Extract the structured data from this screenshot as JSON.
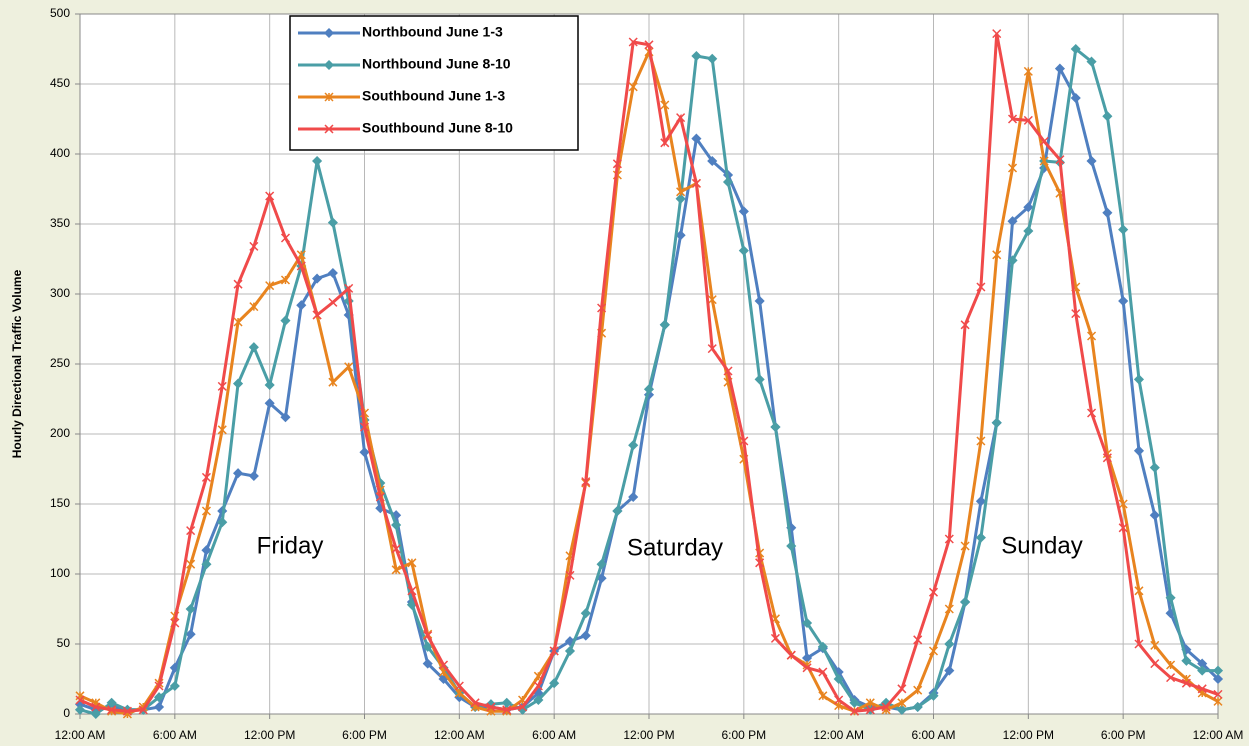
{
  "chart_data": {
    "type": "line",
    "ylabel": "Hourly Directional Traffic Volume",
    "x": [
      0,
      1,
      2,
      3,
      4,
      5,
      6,
      7,
      8,
      9,
      10,
      11,
      12,
      13,
      14,
      15,
      16,
      17,
      18,
      19,
      20,
      21,
      22,
      23,
      24,
      25,
      26,
      27,
      28,
      29,
      30,
      31,
      32,
      33,
      34,
      35,
      36,
      37,
      38,
      39,
      40,
      41,
      42,
      43,
      44,
      45,
      46,
      47,
      48,
      49,
      50,
      51,
      52,
      53,
      54,
      55,
      56,
      57,
      58,
      59,
      60,
      61,
      62,
      63,
      64,
      65,
      66,
      67,
      68,
      69,
      70,
      71,
      72
    ],
    "series": [
      {
        "name": "Northbound June 1-3",
        "color": "#4f7fc0",
        "marker": "diamond",
        "values": [
          7,
          3,
          5,
          3,
          3,
          5,
          33,
          57,
          117,
          145,
          172,
          170,
          222,
          212,
          292,
          311,
          315,
          285,
          187,
          147,
          142,
          80,
          36,
          25,
          12,
          5,
          5,
          3,
          5,
          15,
          45,
          52,
          56,
          97,
          145,
          155,
          228,
          278,
          342,
          411,
          395,
          385,
          359,
          295,
          205,
          133,
          40,
          47,
          30,
          10,
          5,
          5,
          3,
          5,
          15,
          31,
          80,
          152,
          208,
          352,
          362,
          390,
          461,
          440,
          395,
          358,
          295,
          188,
          142,
          72,
          46,
          36,
          25
        ]
      },
      {
        "name": "Northbound June 8-10",
        "color": "#4a9ea6",
        "marker": "diamond",
        "values": [
          3,
          0,
          8,
          3,
          3,
          12,
          20,
          75,
          107,
          137,
          236,
          262,
          235,
          281,
          320,
          395,
          351,
          295,
          210,
          165,
          135,
          78,
          48,
          33,
          15,
          5,
          7,
          8,
          3,
          10,
          22,
          45,
          72,
          107,
          145,
          192,
          232,
          278,
          368,
          470,
          468,
          380,
          331,
          239,
          205,
          120,
          65,
          48,
          25,
          8,
          3,
          8,
          3,
          5,
          13,
          50,
          80,
          126,
          208,
          324,
          345,
          395,
          394,
          475,
          466,
          427,
          346,
          239,
          176,
          83,
          38,
          31,
          31
        ]
      },
      {
        "name": "Southbound June 1-3",
        "color": "#e8841f",
        "marker": "star",
        "values": [
          13,
          8,
          2,
          0,
          5,
          22,
          70,
          107,
          145,
          203,
          280,
          291,
          306,
          310,
          328,
          285,
          237,
          248,
          215,
          160,
          103,
          108,
          57,
          30,
          15,
          5,
          2,
          2,
          10,
          27,
          45,
          113,
          165,
          272,
          385,
          448,
          473,
          435,
          373,
          379,
          296,
          237,
          182,
          115,
          68,
          42,
          35,
          13,
          6,
          2,
          8,
          3,
          8,
          17,
          45,
          75,
          120,
          195,
          328,
          390,
          459,
          395,
          372,
          305,
          270,
          186,
          150,
          88,
          49,
          35,
          25,
          15,
          9
        ]
      },
      {
        "name": "Southbound June 8-10",
        "color": "#f04a4a",
        "marker": "cross",
        "values": [
          10,
          5,
          3,
          2,
          3,
          20,
          65,
          131,
          169,
          234,
          307,
          334,
          370,
          340,
          320,
          285,
          294,
          304,
          205,
          155,
          118,
          88,
          56,
          35,
          20,
          8,
          5,
          3,
          5,
          20,
          45,
          99,
          166,
          290,
          393,
          480,
          478,
          408,
          426,
          379,
          261,
          245,
          195,
          108,
          54,
          42,
          33,
          30,
          10,
          2,
          3,
          5,
          18,
          53,
          87,
          125,
          278,
          305,
          486,
          425,
          424,
          409,
          396,
          286,
          215,
          183,
          133,
          50,
          36,
          26,
          22,
          18,
          14
        ]
      }
    ],
    "xlim": [
      0,
      72
    ],
    "xticks": [
      {
        "value": 0,
        "label": "12:00 AM"
      },
      {
        "value": 6,
        "label": "6:00 AM"
      },
      {
        "value": 12,
        "label": "12:00 PM"
      },
      {
        "value": 18,
        "label": "6:00 PM"
      },
      {
        "value": 24,
        "label": "12:00 AM"
      },
      {
        "value": 30,
        "label": "6:00 AM"
      },
      {
        "value": 36,
        "label": "12:00 PM"
      },
      {
        "value": 42,
        "label": "6:00 PM"
      },
      {
        "value": 48,
        "label": "12:00 AM"
      },
      {
        "value": 54,
        "label": "6:00 AM"
      },
      {
        "value": 60,
        "label": "12:00 PM"
      },
      {
        "value": 66,
        "label": "6:00 PM"
      },
      {
        "value": 72,
        "label": "12:00 AM"
      }
    ],
    "ylim": [
      0,
      500
    ],
    "yticks": [
      0,
      50,
      100,
      150,
      200,
      250,
      300,
      350,
      400,
      450,
      500
    ],
    "grid": true,
    "legend": "upper left",
    "annotations": [
      "Friday",
      "Saturday",
      "Sunday"
    ]
  }
}
